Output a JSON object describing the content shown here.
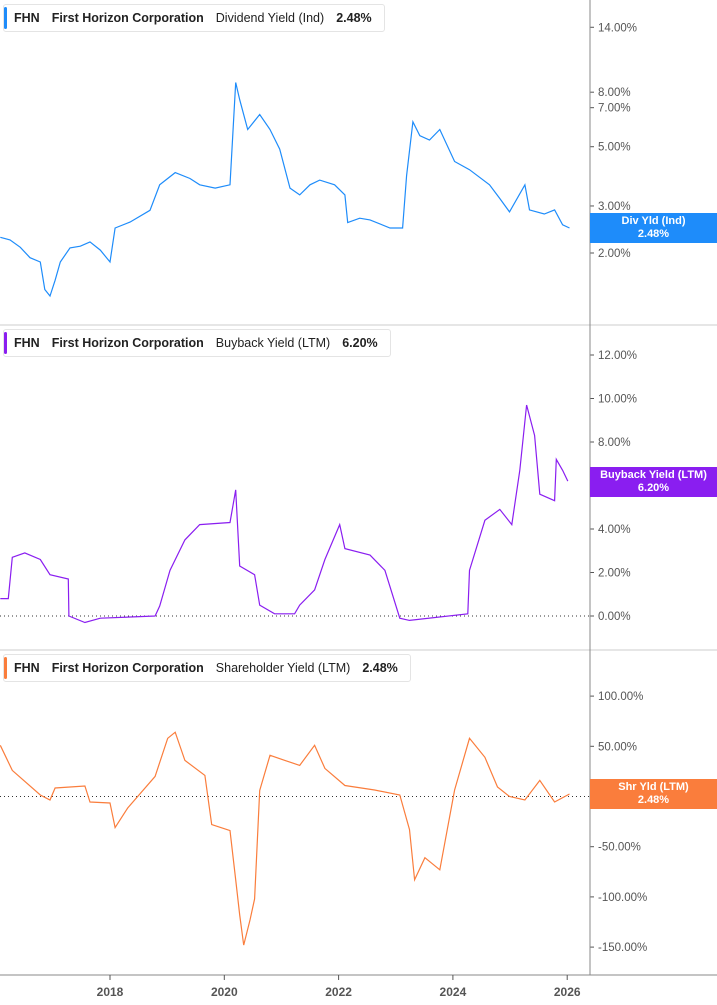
{
  "chart_data": [
    {
      "type": "line",
      "ticker": "FHN",
      "company": "First Horizon Corporation",
      "metric": "Dividend Yield (Ind)",
      "current": "2.48%",
      "badge_label": "Div Yld (Ind)",
      "badge_value": "2.48%",
      "color": "#1e8cfa",
      "scale": "log",
      "ylim": [
        1.2,
        16
      ],
      "yticks": [
        [
          "14.00%",
          14
        ],
        [
          "8.00%",
          8
        ],
        [
          "7.00%",
          7
        ],
        [
          "5.00%",
          5
        ],
        [
          "3.00%",
          3
        ],
        [
          "2.00%",
          2
        ]
      ],
      "points": [
        [
          2016.08,
          2.29
        ],
        [
          2016.25,
          2.24
        ],
        [
          2016.43,
          2.1
        ],
        [
          2016.6,
          1.92
        ],
        [
          2016.78,
          1.85
        ],
        [
          2016.86,
          1.46
        ],
        [
          2016.95,
          1.38
        ],
        [
          2017.04,
          1.58
        ],
        [
          2017.13,
          1.85
        ],
        [
          2017.3,
          2.09
        ],
        [
          2017.48,
          2.12
        ],
        [
          2017.65,
          2.2
        ],
        [
          2017.83,
          2.05
        ],
        [
          2018.0,
          1.85
        ],
        [
          2018.09,
          2.48
        ],
        [
          2018.35,
          2.61
        ],
        [
          2018.7,
          2.89
        ],
        [
          2018.87,
          3.6
        ],
        [
          2019.14,
          4.0
        ],
        [
          2019.4,
          3.8
        ],
        [
          2019.57,
          3.6
        ],
        [
          2019.84,
          3.5
        ],
        [
          2020.1,
          3.6
        ],
        [
          2020.2,
          8.7
        ],
        [
          2020.27,
          7.5
        ],
        [
          2020.41,
          5.8
        ],
        [
          2020.62,
          6.6
        ],
        [
          2020.8,
          5.8
        ],
        [
          2020.97,
          4.9
        ],
        [
          2021.15,
          3.5
        ],
        [
          2021.32,
          3.3
        ],
        [
          2021.5,
          3.6
        ],
        [
          2021.67,
          3.75
        ],
        [
          2021.93,
          3.6
        ],
        [
          2022.11,
          3.3
        ],
        [
          2022.16,
          2.6
        ],
        [
          2022.37,
          2.7
        ],
        [
          2022.55,
          2.66
        ],
        [
          2022.9,
          2.48
        ],
        [
          2023.12,
          2.48
        ],
        [
          2023.19,
          3.9
        ],
        [
          2023.3,
          6.2
        ],
        [
          2023.42,
          5.5
        ],
        [
          2023.59,
          5.3
        ],
        [
          2023.77,
          5.8
        ],
        [
          2024.03,
          4.4
        ],
        [
          2024.29,
          4.1
        ],
        [
          2024.64,
          3.6
        ],
        [
          2024.82,
          3.2
        ],
        [
          2024.99,
          2.85
        ],
        [
          2025.26,
          3.6
        ],
        [
          2025.34,
          2.9
        ],
        [
          2025.6,
          2.8
        ],
        [
          2025.78,
          2.9
        ],
        [
          2025.92,
          2.55
        ],
        [
          2026.04,
          2.48
        ]
      ]
    },
    {
      "type": "line",
      "ticker": "FHN",
      "company": "First Horizon Corporation",
      "metric": "Buyback Yield (LTM)",
      "current": "6.20%",
      "badge_label": "Buyback Yield (LTM)",
      "badge_value": "6.20%",
      "color": "#8a1ef0",
      "scale": "linear",
      "ylim": [
        -1.5,
        14
      ],
      "zero_line": true,
      "yticks": [
        [
          "12.00%",
          12
        ],
        [
          "10.00%",
          10
        ],
        [
          "8.00%",
          8
        ],
        [
          "6.00%",
          6
        ],
        [
          "4.00%",
          4
        ],
        [
          "2.00%",
          2
        ],
        [
          "0.00%",
          0
        ]
      ],
      "points": [
        [
          2016.08,
          0.8
        ],
        [
          2016.22,
          0.8
        ],
        [
          2016.29,
          2.7
        ],
        [
          2016.51,
          2.9
        ],
        [
          2016.78,
          2.6
        ],
        [
          2016.95,
          1.9
        ],
        [
          2017.27,
          1.7
        ],
        [
          2017.28,
          0
        ],
        [
          2017.56,
          -0.3
        ],
        [
          2017.83,
          -0.1
        ],
        [
          2018.79,
          0
        ],
        [
          2018.87,
          0.46
        ],
        [
          2019.05,
          2.1
        ],
        [
          2019.31,
          3.5
        ],
        [
          2019.57,
          4.2
        ],
        [
          2020.1,
          4.3
        ],
        [
          2020.2,
          5.8
        ],
        [
          2020.27,
          2.3
        ],
        [
          2020.53,
          1.9
        ],
        [
          2020.62,
          0.5
        ],
        [
          2020.88,
          0.1
        ],
        [
          2021.23,
          0.1
        ],
        [
          2021.32,
          0.5
        ],
        [
          2021.58,
          1.2
        ],
        [
          2021.76,
          2.6
        ],
        [
          2022.02,
          4.2
        ],
        [
          2022.11,
          3.1
        ],
        [
          2022.55,
          2.8
        ],
        [
          2022.81,
          2.1
        ],
        [
          2023.07,
          -0.1
        ],
        [
          2023.24,
          -0.2
        ],
        [
          2024.26,
          0.1
        ],
        [
          2024.29,
          2.1
        ],
        [
          2024.56,
          4.4
        ],
        [
          2024.82,
          4.9
        ],
        [
          2025.03,
          4.2
        ],
        [
          2025.17,
          6.7
        ],
        [
          2025.29,
          9.7
        ],
        [
          2025.43,
          8.3
        ],
        [
          2025.52,
          5.6
        ],
        [
          2025.78,
          5.3
        ],
        [
          2025.81,
          7.2
        ],
        [
          2025.92,
          6.7
        ],
        [
          2026.01,
          6.2
        ]
      ]
    },
    {
      "type": "line",
      "ticker": "FHN",
      "company": "First Horizon Corporation",
      "metric": "Shareholder Yield (LTM)",
      "current": "2.48%",
      "badge_label": "Shr Yld (LTM)",
      "badge_value": "2.48%",
      "color": "#fa7d3c",
      "scale": "linear",
      "ylim": [
        -175,
        145
      ],
      "zero_line": true,
      "yticks": [
        [
          "100.00%",
          100
        ],
        [
          "50.00%",
          50
        ],
        [
          "0.00%",
          0
        ],
        [
          "-50.00%",
          -50
        ],
        [
          "-100.00%",
          -100
        ],
        [
          "-150.00%",
          -150
        ]
      ],
      "points": [
        [
          2016.08,
          51
        ],
        [
          2016.29,
          26
        ],
        [
          2016.78,
          1.5
        ],
        [
          2016.95,
          -3.5
        ],
        [
          2017.04,
          8.5
        ],
        [
          2017.56,
          10.5
        ],
        [
          2017.65,
          -5.5
        ],
        [
          2018.0,
          -6.5
        ],
        [
          2018.09,
          -31
        ],
        [
          2018.31,
          -11.5
        ],
        [
          2018.79,
          20
        ],
        [
          2019.01,
          58
        ],
        [
          2019.14,
          64
        ],
        [
          2019.31,
          36
        ],
        [
          2019.66,
          21
        ],
        [
          2019.78,
          -28
        ],
        [
          2020.1,
          -34
        ],
        [
          2020.2,
          -83
        ],
        [
          2020.27,
          -118
        ],
        [
          2020.34,
          -148
        ],
        [
          2020.45,
          -123
        ],
        [
          2020.53,
          -102
        ],
        [
          2020.62,
          6
        ],
        [
          2020.8,
          41
        ],
        [
          2021.06,
          36
        ],
        [
          2021.32,
          31
        ],
        [
          2021.58,
          51
        ],
        [
          2021.76,
          28
        ],
        [
          2022.11,
          11
        ],
        [
          2022.63,
          6.5
        ],
        [
          2023.07,
          1.5
        ],
        [
          2023.24,
          -33
        ],
        [
          2023.33,
          -83
        ],
        [
          2023.51,
          -61
        ],
        [
          2023.77,
          -73
        ],
        [
          2024.03,
          6.5
        ],
        [
          2024.29,
          58
        ],
        [
          2024.56,
          39
        ],
        [
          2024.78,
          9.5
        ],
        [
          2024.99,
          0
        ],
        [
          2025.26,
          -3.5
        ],
        [
          2025.52,
          16
        ],
        [
          2025.78,
          -5.5
        ],
        [
          2026.04,
          2.48
        ]
      ]
    }
  ],
  "x_axis": {
    "xlim": [
      2016.08,
      2026.45
    ],
    "ticks": [
      [
        "2018",
        2018
      ],
      [
        "2020",
        2020
      ],
      [
        "2022",
        2022
      ],
      [
        "2024",
        2024
      ],
      [
        "2026",
        2026
      ]
    ]
  }
}
